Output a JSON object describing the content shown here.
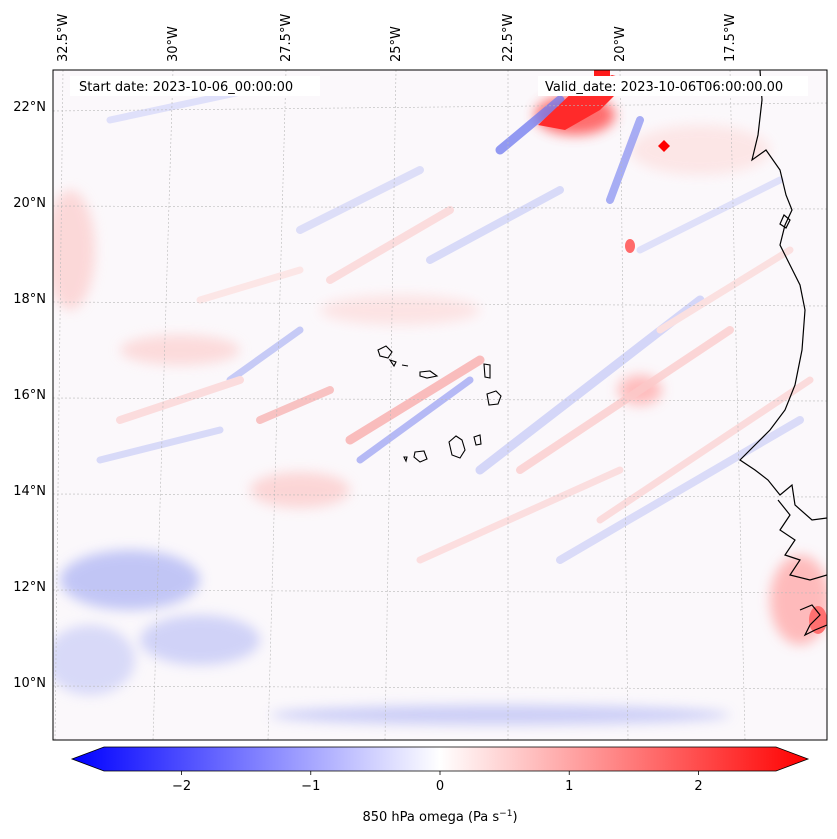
{
  "map": {
    "start_date": "Start date: 2023-10-06_00:00:00",
    "valid_date": "Valid_date: 2023-10-06T06:00:00.00",
    "lon_labels": [
      "32.5°W",
      "30°W",
      "27.5°W",
      "25°W",
      "22.5°W",
      "20°W",
      "17.5°W"
    ],
    "lat_labels": [
      "22°N",
      "20°N",
      "18°N",
      "16°N",
      "14°N",
      "12°N",
      "10°N"
    ]
  },
  "colorbar": {
    "label_prefix": "850 hPa omega (Pa s",
    "label_exp": "−1",
    "label_suffix": ")",
    "ticks": [
      "−2",
      "−1",
      "0",
      "1",
      "2"
    ],
    "range": [
      -2.6,
      2.6
    ],
    "colors": {
      "negative": "#0000ff",
      "zero": "#ffffff",
      "positive": "#ff0000"
    }
  }
}
